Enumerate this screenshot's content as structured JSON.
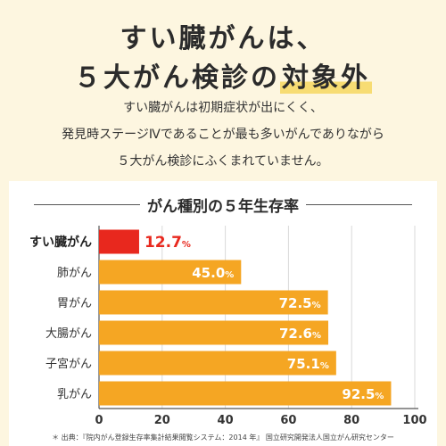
{
  "heading": {
    "line1": "すい臓がんは、",
    "line2_prefix": "５大がん検診の",
    "line2_highlight": "対象外"
  },
  "description": [
    "すい臓がんは初期症状が出にくく、",
    "発見時ステージⅣであることが最も多いがんでありながら",
    "５大がん検診にふくまれていません。"
  ],
  "colors": {
    "background": "#fdf6e0",
    "bar": "#f5a623",
    "highlight_bar": "#e8281e",
    "highlight_underline": "#f7dc73"
  },
  "chart_data": {
    "type": "bar",
    "orientation": "horizontal",
    "title": "がん種別の５年生存率",
    "categories": [
      "すい臓がん",
      "肺がん",
      "胃がん",
      "大腸がん",
      "子宮がん",
      "乳がん"
    ],
    "values": [
      12.7,
      45.0,
      72.5,
      72.6,
      75.1,
      92.5
    ],
    "value_labels": [
      "12.7",
      "45.0",
      "72.5",
      "72.6",
      "75.1",
      "92.5"
    ],
    "value_unit": "%",
    "highlight_index": 0,
    "xlim": [
      0,
      100
    ],
    "xticks": [
      0,
      20,
      40,
      60,
      80,
      100
    ],
    "grid": true,
    "source": "＊ 出典：『院内がん登録生存率集計結果閲覧システム：2014 年』 国立研究開発法人国立がん研究センター"
  }
}
